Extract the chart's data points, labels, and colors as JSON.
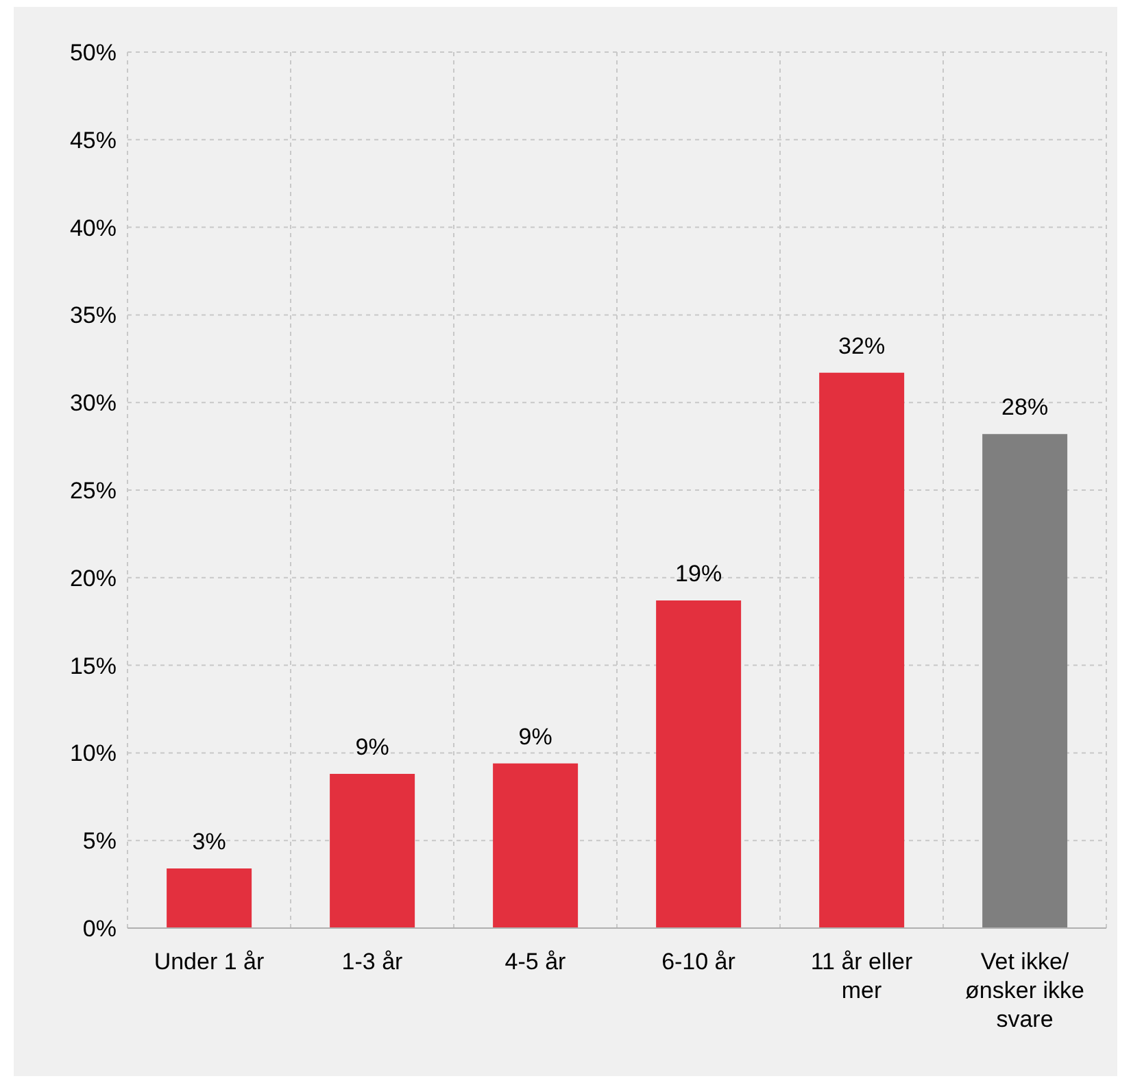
{
  "chart_data": {
    "type": "bar",
    "categories": [
      "Under 1 år",
      "1-3 år",
      "4-5 år",
      "6-10 år",
      "11 år eller mer",
      "Vet ikke/ ønsker ikke svare"
    ],
    "values": [
      3.4,
      8.8,
      9.4,
      18.7,
      31.7,
      28.2
    ],
    "value_labels": [
      "3%",
      "9%",
      "9%",
      "19%",
      "32%",
      "28%"
    ],
    "colors": [
      "#e3303e",
      "#e3303e",
      "#e3303e",
      "#e3303e",
      "#e3303e",
      "#7f7f7f"
    ],
    "ylim": [
      0,
      50
    ],
    "yticks": [
      {
        "value": 0,
        "label": "0%"
      },
      {
        "value": 5,
        "label": "5%"
      },
      {
        "value": 10,
        "label": "10%"
      },
      {
        "value": 15,
        "label": "15%"
      },
      {
        "value": 20,
        "label": "20%"
      },
      {
        "value": 25,
        "label": "25%"
      },
      {
        "value": 30,
        "label": "30%"
      },
      {
        "value": 35,
        "label": "35%"
      },
      {
        "value": 40,
        "label": "40%"
      },
      {
        "value": 45,
        "label": "45%"
      },
      {
        "value": 50,
        "label": "50%"
      }
    ],
    "grid": true
  }
}
